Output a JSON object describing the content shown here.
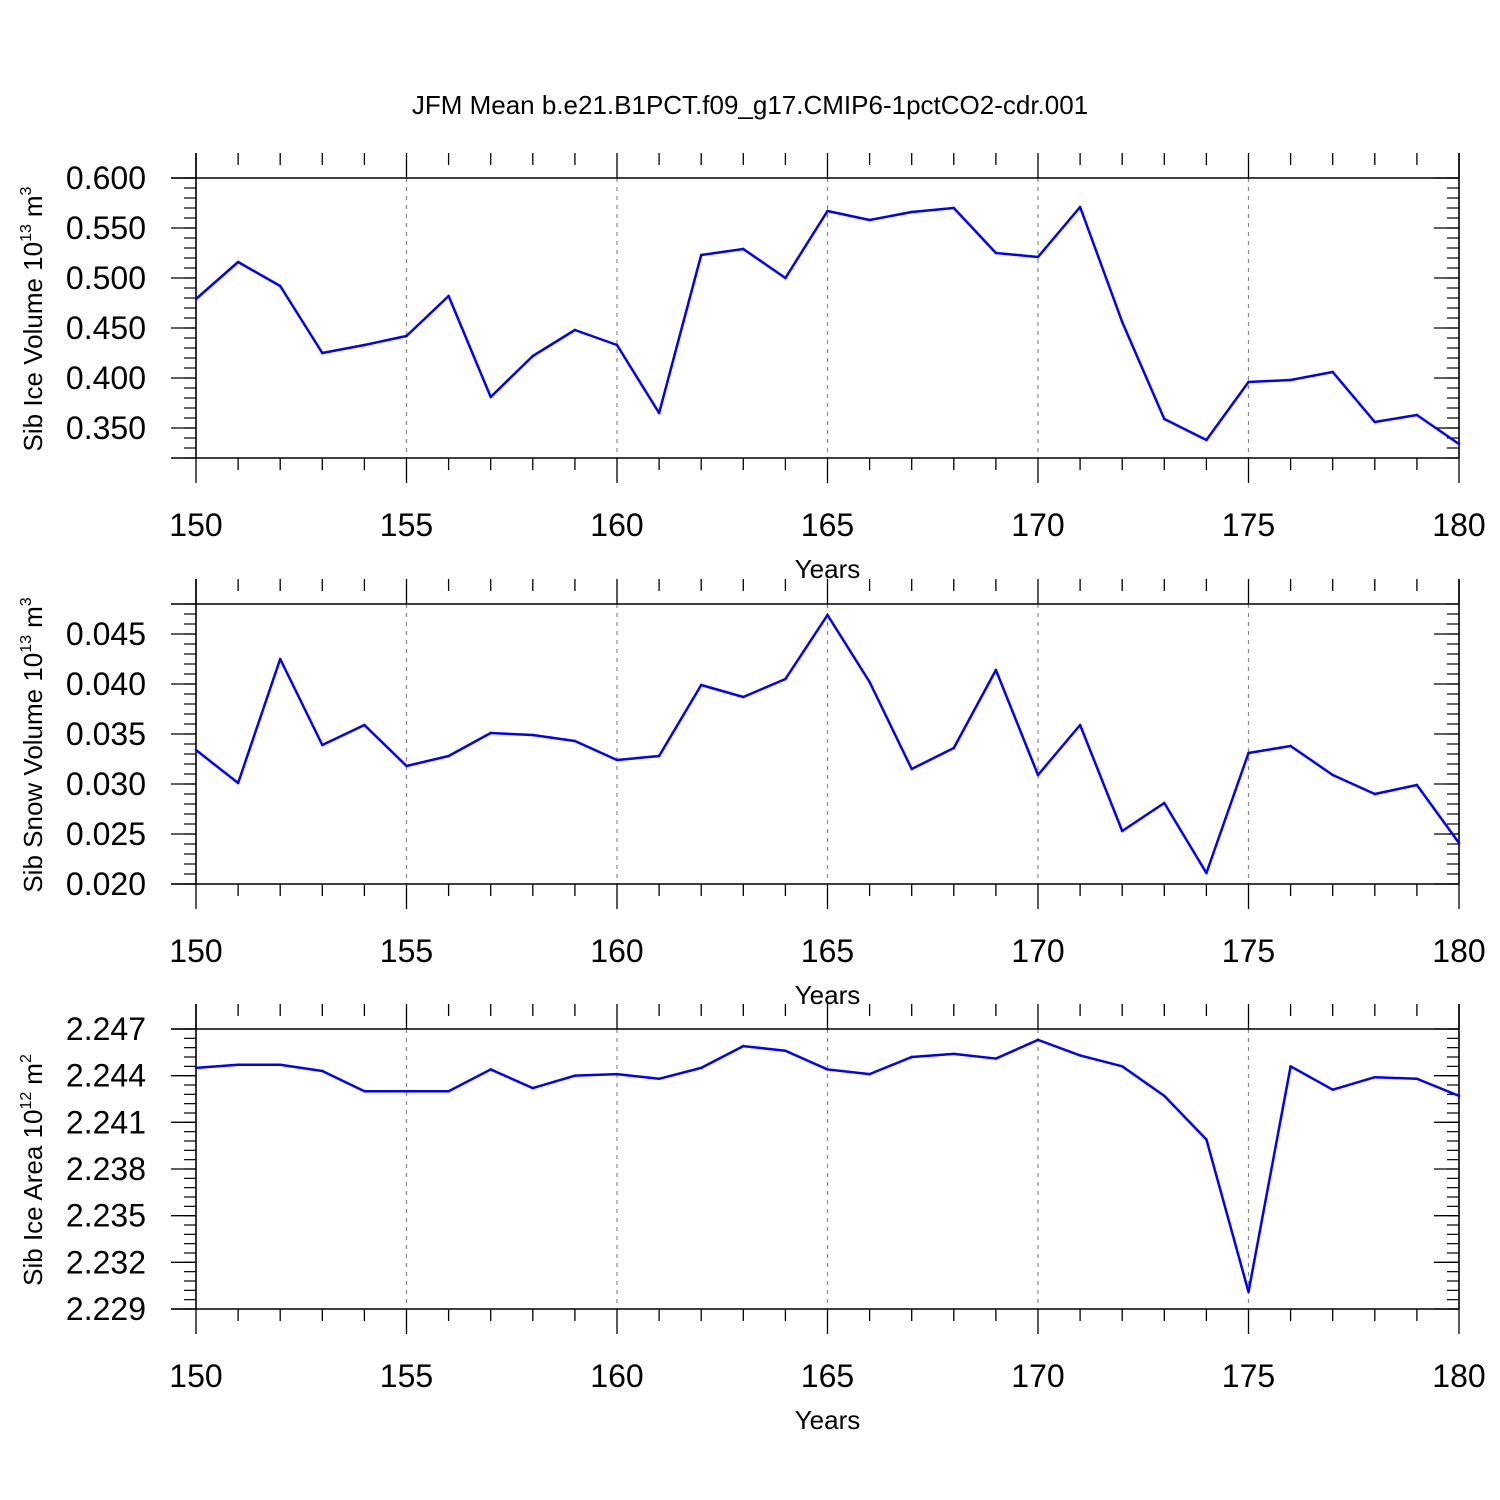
{
  "title": "JFM Mean b.e21.B1PCT.f09_g17.CMIP6-1pctCO2-cdr.001",
  "line_color": "#0000ff",
  "chart_data": [
    {
      "type": "line",
      "ylabel_main": "Sib Ice Volume 10",
      "ylabel_exp": "13",
      "ylabel_unit": "m",
      "ylabel_unit_exp": "3",
      "xlabel": "Years",
      "xlim": [
        150,
        180
      ],
      "ylim": [
        0.32,
        0.6
      ],
      "xticks": [
        150,
        155,
        160,
        165,
        170,
        175,
        180
      ],
      "xtick_labels": [
        "150",
        "155",
        "160",
        "165",
        "170",
        "175",
        "180"
      ],
      "yticks": [
        0.35,
        0.4,
        0.45,
        0.5,
        0.55,
        0.6
      ],
      "ytick_labels": [
        "0.350",
        "0.400",
        "0.450",
        "0.500",
        "0.550",
        "0.600"
      ],
      "x": [
        150,
        151,
        152,
        153,
        154,
        155,
        156,
        157,
        158,
        159,
        160,
        161,
        162,
        163,
        164,
        165,
        166,
        167,
        168,
        169,
        170,
        171,
        172,
        173,
        174,
        175,
        176,
        177,
        178,
        179,
        180
      ],
      "values": [
        0.479,
        0.516,
        0.492,
        0.425,
        0.433,
        0.442,
        0.482,
        0.381,
        0.422,
        0.448,
        0.433,
        0.365,
        0.523,
        0.529,
        0.5,
        0.567,
        0.558,
        0.566,
        0.57,
        0.525,
        0.521,
        0.571,
        0.456,
        0.359,
        0.338,
        0.396,
        0.398,
        0.406,
        0.356,
        0.363,
        0.334
      ]
    },
    {
      "type": "line",
      "ylabel_main": "Sib Snow Volume 10",
      "ylabel_exp": "13",
      "ylabel_unit": "m",
      "ylabel_unit_exp": "3",
      "xlabel": "Years",
      "xlim": [
        150,
        180
      ],
      "ylim": [
        0.02,
        0.048
      ],
      "xticks": [
        150,
        155,
        160,
        165,
        170,
        175,
        180
      ],
      "xtick_labels": [
        "150",
        "155",
        "160",
        "165",
        "170",
        "175",
        "180"
      ],
      "yticks": [
        0.02,
        0.025,
        0.03,
        0.035,
        0.04,
        0.045
      ],
      "ytick_labels": [
        "0.020",
        "0.025",
        "0.030",
        "0.035",
        "0.040",
        "0.045"
      ],
      "x": [
        150,
        151,
        152,
        153,
        154,
        155,
        156,
        157,
        158,
        159,
        160,
        161,
        162,
        163,
        164,
        165,
        166,
        167,
        168,
        169,
        170,
        171,
        172,
        173,
        174,
        175,
        176,
        177,
        178,
        179,
        180
      ],
      "values": [
        0.0334,
        0.0301,
        0.0425,
        0.0339,
        0.0359,
        0.0318,
        0.0328,
        0.0351,
        0.0349,
        0.0343,
        0.0324,
        0.0328,
        0.0399,
        0.0387,
        0.0405,
        0.0469,
        0.0402,
        0.0315,
        0.0336,
        0.0414,
        0.0309,
        0.0359,
        0.0253,
        0.0281,
        0.0211,
        0.0331,
        0.0338,
        0.0309,
        0.029,
        0.0299,
        0.0241
      ]
    },
    {
      "type": "line",
      "ylabel_main": "Sib Ice Area 10",
      "ylabel_exp": "12",
      "ylabel_unit": "m",
      "ylabel_unit_exp": "2",
      "xlabel": "Years",
      "xlim": [
        150,
        180
      ],
      "ylim": [
        2.229,
        2.247
      ],
      "xticks": [
        150,
        155,
        160,
        165,
        170,
        175,
        180
      ],
      "xtick_labels": [
        "150",
        "155",
        "160",
        "165",
        "170",
        "175",
        "180"
      ],
      "yticks": [
        2.229,
        2.232,
        2.235,
        2.238,
        2.241,
        2.244,
        2.247
      ],
      "ytick_labels": [
        "2.229",
        "2.232",
        "2.235",
        "2.238",
        "2.241",
        "2.244",
        "2.247"
      ],
      "x": [
        150,
        151,
        152,
        153,
        154,
        155,
        156,
        157,
        158,
        159,
        160,
        161,
        162,
        163,
        164,
        165,
        166,
        167,
        168,
        169,
        170,
        171,
        172,
        173,
        174,
        175,
        176,
        177,
        178,
        179,
        180
      ],
      "values": [
        2.2445,
        2.2447,
        2.2447,
        2.2443,
        2.243,
        2.243,
        2.243,
        2.2444,
        2.2432,
        2.244,
        2.2441,
        2.2438,
        2.2445,
        2.2459,
        2.2456,
        2.2444,
        2.2441,
        2.2452,
        2.2454,
        2.2451,
        2.2463,
        2.2453,
        2.2446,
        2.2427,
        2.2399,
        2.2301,
        2.2446,
        2.2431,
        2.2439,
        2.2438,
        2.2427
      ]
    }
  ]
}
